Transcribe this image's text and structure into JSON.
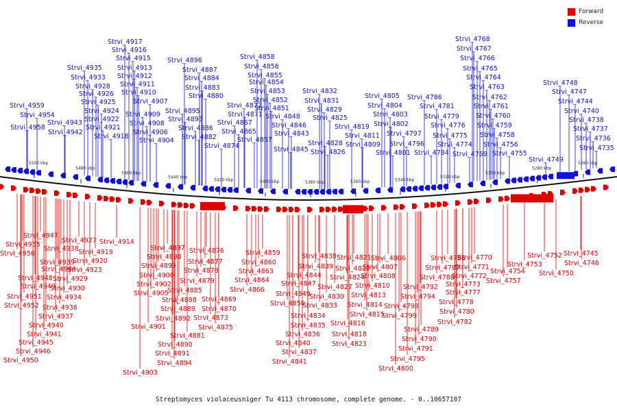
{
  "legend": {
    "forward": {
      "label": "Forward",
      "color": "#e00000"
    },
    "reverse": {
      "label": "Reverse",
      "color": "#1010e0"
    }
  },
  "caption": "Streptomyces violaceusniger Tu 4113 chromosome, complete genome. - 0..10657107",
  "ticks": [
    "5500 kbp",
    "5480 kbp",
    "5460 kbp",
    "5440 kbp",
    "5420 kbp",
    "5400 kbp",
    "5380 kbp",
    "5360 kbp",
    "5340 kbp",
    "5320 kbp",
    "5300 kbp",
    "5280 kbp",
    "5260 kbp"
  ],
  "reverse_labels": [
    "Strvi_4959",
    "Strvi_4954",
    "Strvi_4958",
    "Strvi_4943",
    "Strvi_4942",
    "Strvi_4935",
    "Strvi_4933",
    "Strvi_4928",
    "Strvi_4926",
    "Strvi_4925",
    "Strvi_4924",
    "Strvi_4922",
    "Strvi_4921",
    "Strvi_4918",
    "Strvi_4917",
    "Strvi_4916",
    "Strvi_4915",
    "Strvi_4913",
    "Strvi_4912",
    "Strvi_4911",
    "Strvi_4910",
    "Strvi_4909",
    "Strvi_4907",
    "Strvi_4908",
    "Strvi_4906",
    "Strvi_4904",
    "Strvi_4896",
    "Strvi_4887",
    "Strvi_4884",
    "Strvi_4883",
    "Strvi_4880",
    "Strvi_4895",
    "Strvi_4893",
    "Strvi_4886",
    "Strvi_4882",
    "Strvi_4874",
    "Strvi_4872",
    "Strvi_4871",
    "Strvi_4867",
    "Strvi_4865",
    "Strvi_4857",
    "Strvi_4858",
    "Strvi_4856",
    "Strvi_4855",
    "Strvi_4854",
    "Strvi_4853",
    "Strvi_4852",
    "Strvi_4851",
    "Strvi_4848",
    "Strvi_4846",
    "Strvi_4843",
    "Strvi_4845",
    "Strvi_4832",
    "Strvi_4831",
    "Strvi_4829",
    "Strvi_4825",
    "Strvi_4819",
    "Strvi_4828",
    "Strvi_4826",
    "Strvi_4811",
    "Strvi_4809",
    "Strvi_4805",
    "Strvi_4804",
    "Strvi_4803",
    "Strvi_4802",
    "Strvi_4797",
    "Strvi_4796",
    "Strvi_4801",
    "Strvi_4786",
    "Strvi_4781",
    "Strvi_4779",
    "Strvi_4776",
    "Strvi_4775",
    "Strvi_4774",
    "Strvi_4784",
    "Strvi_4769",
    "Strvi_4768",
    "Strvi_4767",
    "Strvi_4766",
    "Strvi_4765",
    "Strvi_4764",
    "Strvi_4763",
    "Strvi_4762",
    "Strvi_4761",
    "Strvi_4760",
    "Strvi_4759",
    "Strvi_4758",
    "Strvi_4756",
    "Strvi_4755",
    "Strvi_4749",
    "Strvi_4748",
    "Strvi_4747",
    "Strvi_4744",
    "Strvi_4740",
    "Strvi_4738",
    "Strvi_4737",
    "Strvi_4736",
    "Strvi_4735"
  ],
  "forward_labels": [
    "Strvi_4947",
    "Strvi_4955",
    "Strvi_4956",
    "Strvi_4938",
    "Strvi_4939",
    "Strvi_4944",
    "Strvi_4948",
    "Strvi_4949",
    "Strvi_4951",
    "Strvi_4952",
    "Strvi_4936",
    "Strvi_4937",
    "Strvi_4940",
    "Strvi_4941",
    "Strvi_4945",
    "Strvi_4946",
    "Strvi_4950",
    "Strvi_4927",
    "Strvi_4919",
    "Strvi_4920",
    "Strvi_4923",
    "Strvi_4929",
    "Strvi_4930",
    "Strvi_4934",
    "Strvi_4914",
    "Strvi_4897",
    "Strvi_4898",
    "Strvi_4899",
    "Strvi_4900",
    "Strvi_4902",
    "Strvi_4905",
    "Strvi_4901",
    "Strvi_4903",
    "Strvi_4885",
    "Strvi_4888",
    "Strvi_4889",
    "Strvi_4892",
    "Strvi_4881",
    "Strvi_4890",
    "Strvi_4891",
    "Strvi_4894",
    "Strvi_4876",
    "Strvi_4877",
    "Strvi_4878",
    "Strvi_4879",
    "Strvi_4869",
    "Strvi_4870",
    "Strvi_4873",
    "Strvi_4875",
    "Strvi_4859",
    "Strvi_4860",
    "Strvi_4863",
    "Strvi_4864",
    "Strvi_4866",
    "Strvi_4838",
    "Strvi_4839",
    "Strvi_4844",
    "Strvi_4847",
    "Strvi_4849",
    "Strvi_4850",
    "Strvi_4830",
    "Strvi_4833",
    "Strvi_4834",
    "Strvi_4835",
    "Strvi_4836",
    "Strvi_4840",
    "Strvi_4837",
    "Strvi_4841",
    "Strvi_4821",
    "Strvi_4822",
    "Strvi_4824",
    "Strvi_4827",
    "Strvi_4823",
    "Strvi_4816",
    "Strvi_4818",
    "Strvi_4806",
    "Strvi_4807",
    "Strvi_4808",
    "Strvi_4810",
    "Strvi_4813",
    "Strvi_4814",
    "Strvi_4815",
    "Strvi_4785",
    "Strvi_4787",
    "Strvi_4788",
    "Strvi_4792",
    "Strvi_4794",
    "Strvi_4798",
    "Strvi_4799",
    "Strvi_4789",
    "Strvi_4790",
    "Strvi_4791",
    "Strvi_4795",
    "Strvi_4800",
    "Strvi_4770",
    "Strvi_4771",
    "Strvi_4772",
    "Strvi_4773",
    "Strvi_4777",
    "Strvi_4778",
    "Strvi_4780",
    "Strvi_4782",
    "Strvi_4753",
    "Strvi_4754",
    "Strvi_4757",
    "Strvi_4752",
    "Strvi_4750",
    "Strvi_4745",
    "Strvi_4746"
  ]
}
